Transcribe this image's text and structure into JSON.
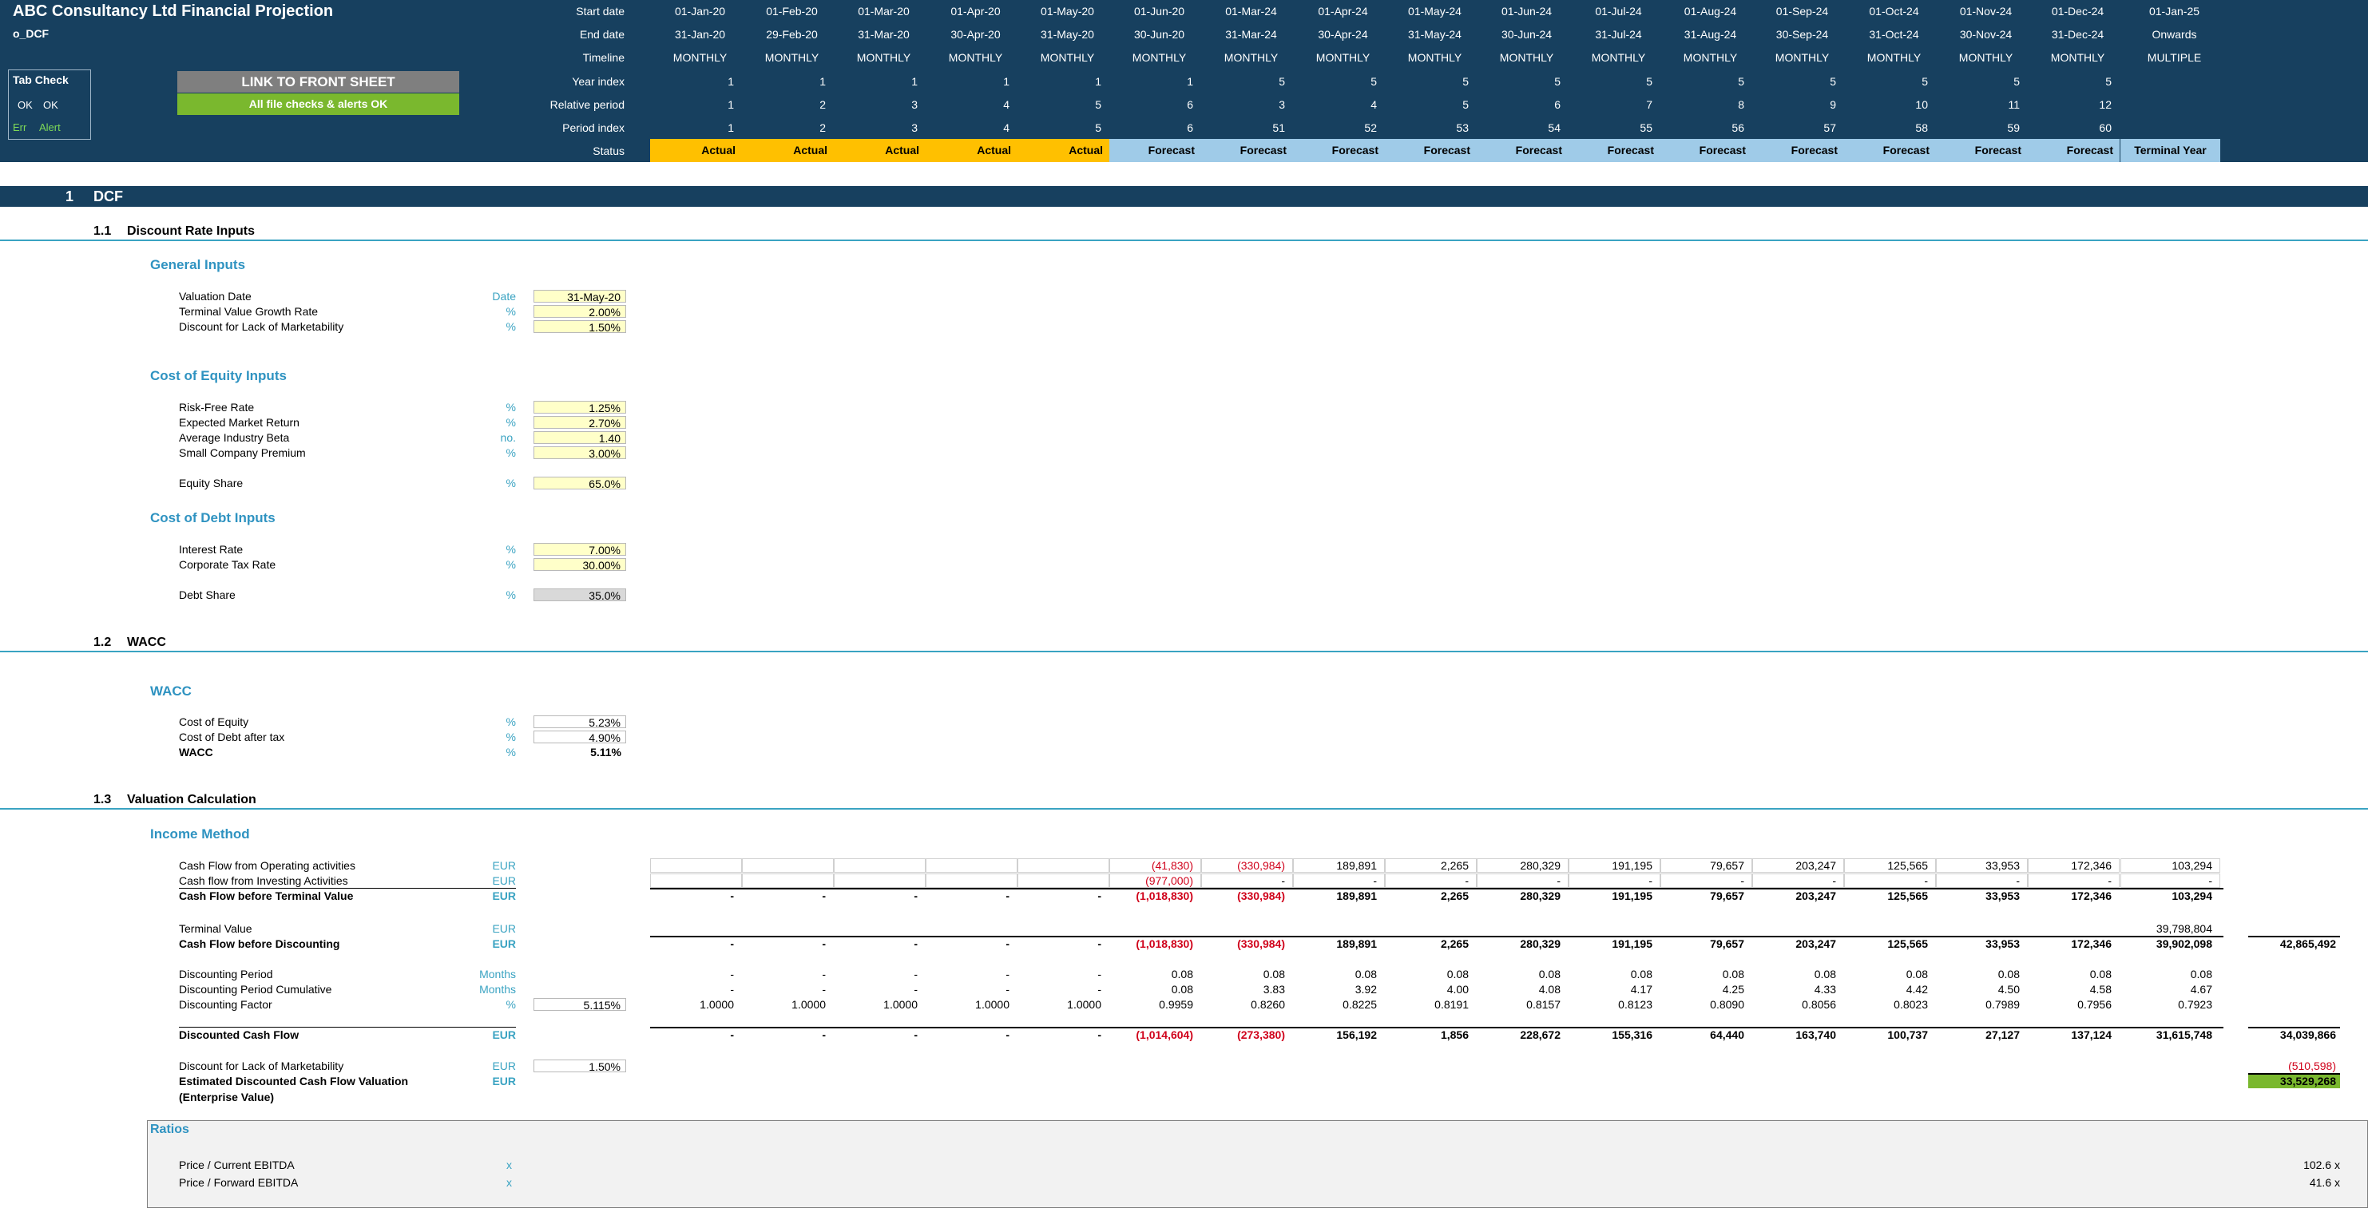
{
  "app": {
    "title": "ABC Consultancy Ltd Financial Projection",
    "sheet": "o_DCF"
  },
  "tab_check": {
    "title": "Tab Check",
    "ok1": "OK",
    "ok2": "OK",
    "err": "Err",
    "alert": "Alert"
  },
  "buttons": {
    "link": "LINK TO FRONT SHEET",
    "checks": "All file checks & alerts OK"
  },
  "colors": {
    "header_bg": "#17405f",
    "accent": "#3aa3c2",
    "actual": "#ffc000",
    "forecast": "#9fcbe8",
    "ok_green": "#7ab82e",
    "input": "#ffffc9"
  },
  "timeline": {
    "labels": {
      "start": "Start date",
      "end": "End date",
      "timeline": "Timeline",
      "year_index": "Year index",
      "relative": "Relative period",
      "period": "Period index",
      "status": "Status"
    },
    "start": [
      "01-Jan-20",
      "01-Feb-20",
      "01-Mar-20",
      "01-Apr-20",
      "01-May-20",
      "01-Jun-20",
      "01-Mar-24",
      "01-Apr-24",
      "01-May-24",
      "01-Jun-24",
      "01-Jul-24",
      "01-Aug-24",
      "01-Sep-24",
      "01-Oct-24",
      "01-Nov-24",
      "01-Dec-24",
      "01-Jan-25"
    ],
    "end": [
      "31-Jan-20",
      "29-Feb-20",
      "31-Mar-20",
      "30-Apr-20",
      "31-May-20",
      "30-Jun-20",
      "31-Mar-24",
      "30-Apr-24",
      "31-May-24",
      "30-Jun-24",
      "31-Jul-24",
      "31-Aug-24",
      "30-Sep-24",
      "31-Oct-24",
      "30-Nov-24",
      "31-Dec-24",
      "Onwards"
    ],
    "timeline": [
      "MONTHLY",
      "MONTHLY",
      "MONTHLY",
      "MONTHLY",
      "MONTHLY",
      "MONTHLY",
      "MONTHLY",
      "MONTHLY",
      "MONTHLY",
      "MONTHLY",
      "MONTHLY",
      "MONTHLY",
      "MONTHLY",
      "MONTHLY",
      "MONTHLY",
      "MONTHLY",
      "MULTIPLE"
    ],
    "year_index": [
      "1",
      "1",
      "1",
      "1",
      "1",
      "1",
      "5",
      "5",
      "5",
      "5",
      "5",
      "5",
      "5",
      "5",
      "5",
      "5",
      ""
    ],
    "relative": [
      "1",
      "2",
      "3",
      "4",
      "5",
      "6",
      "3",
      "4",
      "5",
      "6",
      "7",
      "8",
      "9",
      "10",
      "11",
      "12",
      ""
    ],
    "period": [
      "1",
      "2",
      "3",
      "4",
      "5",
      "6",
      "51",
      "52",
      "53",
      "54",
      "55",
      "56",
      "57",
      "58",
      "59",
      "60",
      ""
    ],
    "status": [
      "Actual",
      "Actual",
      "Actual",
      "Actual",
      "Actual",
      "Forecast",
      "Forecast",
      "Forecast",
      "Forecast",
      "Forecast",
      "Forecast",
      "Forecast",
      "Forecast",
      "Forecast",
      "Forecast",
      "Forecast",
      "Terminal Year"
    ]
  },
  "sections": {
    "s1_num": "1",
    "s1": "DCF",
    "s11_num": "1.1",
    "s11": "Discount Rate Inputs",
    "s12_num": "1.2",
    "s12": "WACC",
    "s13_num": "1.3",
    "s13": "Valuation Calculation"
  },
  "general": {
    "title": "General Inputs",
    "rows": [
      {
        "label": "Valuation Date",
        "unit": "Date",
        "value": "31-May-20"
      },
      {
        "label": "Terminal Value Growth Rate",
        "unit": "%",
        "value": "2.00%"
      },
      {
        "label": "Discount for Lack of Marketability",
        "unit": "%",
        "value": "1.50%"
      }
    ]
  },
  "equity": {
    "title": "Cost of Equity Inputs",
    "rows": [
      {
        "label": "Risk-Free Rate",
        "unit": "%",
        "value": "1.25%"
      },
      {
        "label": "Expected Market Return",
        "unit": "%",
        "value": "2.70%"
      },
      {
        "label": "Average Industry Beta",
        "unit": "no.",
        "value": "1.40"
      },
      {
        "label": "Small Company Premium",
        "unit": "%",
        "value": "3.00%"
      }
    ],
    "share": {
      "label": "Equity Share",
      "unit": "%",
      "value": "65.0%"
    }
  },
  "debt": {
    "title": "Cost of Debt Inputs",
    "rows": [
      {
        "label": "Interest Rate",
        "unit": "%",
        "value": "7.00%"
      },
      {
        "label": "Corporate Tax Rate",
        "unit": "%",
        "value": "30.00%"
      }
    ],
    "share": {
      "label": "Debt Share",
      "unit": "%",
      "value": "35.0%"
    }
  },
  "wacc": {
    "title": "WACC",
    "rows": [
      {
        "label": "Cost of Equity",
        "unit": "%",
        "value": "5.23%"
      },
      {
        "label": "Cost of Debt after tax",
        "unit": "%",
        "value": "4.90%"
      },
      {
        "label": "WACC",
        "unit": "%",
        "value": "5.11%"
      }
    ]
  },
  "income": {
    "title": "Income Method",
    "rows": [
      {
        "label": "Cash Flow from Operating activities",
        "unit": "EUR",
        "input": "",
        "total": "",
        "vals": [
          "",
          "",
          "",
          "",
          "",
          "(41,830)",
          "(330,984)",
          "189,891",
          "2,265",
          "280,329",
          "191,195",
          "79,657",
          "203,247",
          "125,565",
          "33,953",
          "172,346",
          "103,294"
        ]
      },
      {
        "label": "Cash flow from Investing Activities",
        "unit": "EUR",
        "input": "",
        "total": "",
        "vals": [
          "",
          "",
          "",
          "",
          "",
          "(977,000)",
          "-",
          "-",
          "-",
          "-",
          "-",
          "-",
          "-",
          "-",
          "-",
          "-",
          "-"
        ]
      },
      {
        "label": "Cash Flow before Terminal Value",
        "unit": "EUR",
        "input": "",
        "total": "",
        "vals": [
          "-",
          "-",
          "-",
          "-",
          "-",
          "(1,018,830)",
          "(330,984)",
          "189,891",
          "2,265",
          "280,329",
          "191,195",
          "79,657",
          "203,247",
          "125,565",
          "33,953",
          "172,346",
          "103,294"
        ]
      },
      {
        "label": "Terminal Value",
        "unit": "EUR",
        "input": "",
        "total": "",
        "vals": [
          "",
          "",
          "",
          "",
          "",
          "",
          "",
          "",
          "",
          "",
          "",
          "",
          "",
          "",
          "",
          "",
          "39,798,804"
        ]
      },
      {
        "label": "Cash Flow before Discounting",
        "unit": "EUR",
        "input": "",
        "total": "42,865,492",
        "vals": [
          "-",
          "-",
          "-",
          "-",
          "-",
          "(1,018,830)",
          "(330,984)",
          "189,891",
          "2,265",
          "280,329",
          "191,195",
          "79,657",
          "203,247",
          "125,565",
          "33,953",
          "172,346",
          "39,902,098"
        ]
      },
      {
        "label": "Discounting Period",
        "unit": "Months",
        "input": "",
        "total": "",
        "vals": [
          "-",
          "-",
          "-",
          "-",
          "-",
          "0.08",
          "0.08",
          "0.08",
          "0.08",
          "0.08",
          "0.08",
          "0.08",
          "0.08",
          "0.08",
          "0.08",
          "0.08",
          "0.08"
        ]
      },
      {
        "label": "Discounting Period Cumulative",
        "unit": "Months",
        "input": "",
        "total": "",
        "vals": [
          "-",
          "-",
          "-",
          "-",
          "-",
          "0.08",
          "3.83",
          "3.92",
          "4.00",
          "4.08",
          "4.17",
          "4.25",
          "4.33",
          "4.42",
          "4.50",
          "4.58",
          "4.67"
        ]
      },
      {
        "label": "Discounting Factor",
        "unit": "%",
        "input": "5.115%",
        "total": "",
        "vals": [
          "1.0000",
          "1.0000",
          "1.0000",
          "1.0000",
          "1.0000",
          "0.9959",
          "0.8260",
          "0.8225",
          "0.8191",
          "0.8157",
          "0.8123",
          "0.8090",
          "0.8056",
          "0.8023",
          "0.7989",
          "0.7956",
          "0.7923"
        ]
      },
      {
        "label": "Discounted Cash Flow",
        "unit": "EUR",
        "input": "",
        "total": "34,039,866",
        "vals": [
          "-",
          "-",
          "-",
          "-",
          "-",
          "(1,014,604)",
          "(273,380)",
          "156,192",
          "1,856",
          "228,672",
          "155,316",
          "64,440",
          "163,740",
          "100,737",
          "27,127",
          "137,124",
          "31,615,748"
        ]
      },
      {
        "label": "Discount for Lack of Marketability",
        "unit": "EUR",
        "input": "1.50%",
        "total": "(510,598)",
        "vals": [
          "",
          "",
          "",
          "",
          "",
          "",
          "",
          "",
          "",
          "",
          "",
          "",
          "",
          "",
          "",
          "",
          ""
        ]
      },
      {
        "label": "Estimated Discounted Cash Flow Valuation",
        "label2": "(Enterprise Value)",
        "unit": "EUR",
        "input": "",
        "total": "33,529,268",
        "vals": [
          "",
          "",
          "",
          "",
          "",
          "",
          "",
          "",
          "",
          "",
          "",
          "",
          "",
          "",
          "",
          "",
          ""
        ]
      }
    ]
  },
  "ratios": {
    "title": "Ratios",
    "rows": [
      {
        "label": "Price / Current EBITDA",
        "unit": "x",
        "value": "102.6 x"
      },
      {
        "label": "Price / Forward EBITDA",
        "unit": "x",
        "value": "41.6 x"
      }
    ]
  }
}
